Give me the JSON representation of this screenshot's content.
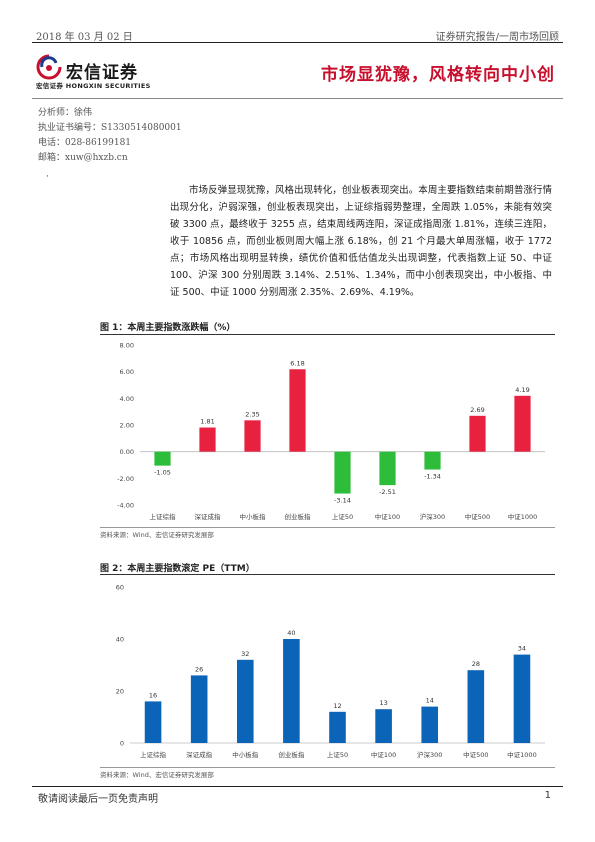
{
  "header": {
    "date": "2018 年 03 月 02 日",
    "report_type": "证券研究报告/一周市场回顾"
  },
  "logo": {
    "name_cn": "宏信证券",
    "name_en": "宏信证券  HONGXIN SECURITIES"
  },
  "title": "市场显犹豫，风格转向中小创",
  "analyst": {
    "name": "分析师：徐伟",
    "cert": "执业证书编号：S1330514080001",
    "phone": "电话：028-86199181",
    "email": "邮箱：xuw@hxzb.cn"
  },
  "bullet": "·",
  "summary": "市场反弹显现犹豫，风格出现转化，创业板表现突出。本周主要指数结束前期普涨行情出现分化，沪弱深强，创业板表现突出，上证综指弱势整理，全周跌 1.05%，未能有效突破 3300 点，最终收于 3255 点，结束周线两连阳，深证成指周涨 1.81%，连续三连阳，收于 10856 点，而创业板则周大幅上涨 6.18%，创 21 个月最大单周涨幅，收于 1772 点；市场风格出现明显转换，绩优价值和低估值龙头出现调整，代表指数上证 50、中证 100、沪深 300 分别周跌 3.14%、2.51%、1.34%，而中小创表现突出，中小板指、中证 500、中证 1000 分别周涨 2.35%、2.69%、4.19%。",
  "figure1": {
    "title": "图 1：本周主要指数涨跌幅（%）",
    "source": "资料来源：Wind、宏信证券研究发展部"
  },
  "figure2": {
    "title": "图 2：本周主要指数滚定 PE（TTM）",
    "source": "资料来源：Wind、宏信证券研究发展部"
  },
  "chart_data": [
    {
      "type": "bar",
      "title": "图 1：本周主要指数涨跌幅（%）",
      "categories": [
        "上证综指",
        "深证成指",
        "中小板指",
        "创业板指",
        "上证50",
        "中证100",
        "沪深300",
        "中证500",
        "中证1000"
      ],
      "values": [
        -1.05,
        1.81,
        2.35,
        6.18,
        -3.14,
        -2.51,
        -1.34,
        2.69,
        4.19
      ],
      "value_labels": [
        "-1.05",
        "1.81",
        "2.35",
        "6.18",
        "-3.14",
        "-2.51",
        "-1.34",
        "2.69",
        "4.19"
      ],
      "ylim": [
        -4,
        8
      ],
      "yticks": [
        "8.00",
        "6.00",
        "4.00",
        "2.00",
        "0.00",
        "-2.00",
        "-4.00"
      ],
      "ytick_values": [
        8,
        6,
        4,
        2,
        0,
        -2,
        -4
      ],
      "colors": {
        "positive": "#e8213f",
        "negative": "#2ebd3a"
      },
      "grid": false
    },
    {
      "type": "bar",
      "title": "图 2：本周主要指数滚定 PE（TTM）",
      "categories": [
        "上证综指",
        "深证成指",
        "中小板指",
        "创业板指",
        "上证50",
        "中证100",
        "沪深300",
        "中证500",
        "中证1000"
      ],
      "values": [
        16,
        26,
        32,
        40,
        12,
        13,
        14,
        28,
        34
      ],
      "value_labels": [
        "16",
        "26",
        "32",
        "40",
        "12",
        "13",
        "14",
        "28",
        "34"
      ],
      "ylim": [
        0,
        60
      ],
      "yticks": [
        "60",
        "40",
        "20",
        "0"
      ],
      "ytick_values": [
        60,
        40,
        20,
        0
      ],
      "colors": {
        "bar": "#0b64b8"
      },
      "grid": false
    }
  ],
  "footer": {
    "disclaimer": "敬请阅读最后一页免责声明",
    "page": "1"
  }
}
